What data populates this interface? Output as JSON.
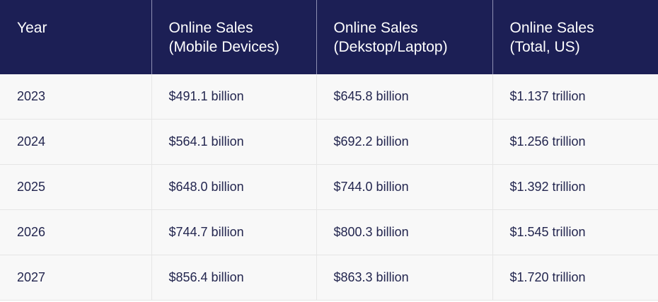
{
  "headers": [
    [
      "Year",
      ""
    ],
    [
      "Online Sales",
      "(Mobile Devices)"
    ],
    [
      "Online Sales",
      "(Dekstop/Laptop)"
    ],
    [
      "Online Sales",
      "(Total, US)"
    ]
  ],
  "rows": [
    [
      "2023",
      "$491.1 billion",
      "$645.8 billion",
      "$1.137 trillion"
    ],
    [
      "2024",
      "$564.1 billion",
      "$692.2 billion",
      "$1.256 trillion"
    ],
    [
      "2025",
      "$648.0 billion",
      "$744.0 billion",
      "$1.392 trillion"
    ],
    [
      "2026",
      "$744.7 billion",
      "$800.3 billion",
      "$1.545 trillion"
    ],
    [
      "2027",
      "$856.4 billion",
      "$863.3 billion",
      "$1.720 trillion"
    ]
  ]
}
